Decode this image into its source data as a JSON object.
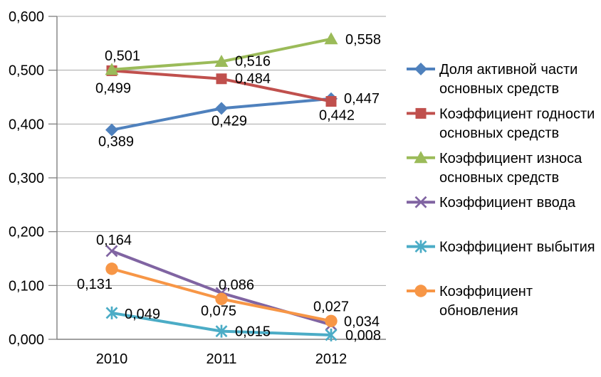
{
  "chart_data": {
    "type": "line",
    "title": "",
    "categories": [
      "2010",
      "2011",
      "2012"
    ],
    "y_axis": {
      "min": 0,
      "max": 0.6,
      "step": 0.1,
      "tick_labels": [
        "0,000",
        "0,100",
        "0,200",
        "0,300",
        "0,400",
        "0,500",
        "0,600"
      ]
    },
    "grid": true,
    "legend_position": "right",
    "series": [
      {
        "name": "Доля активной части основных средств",
        "legend_lines": [
          "Доля активной части",
          "основных средств"
        ],
        "color": "#4F81BD",
        "marker": "diamond",
        "values": [
          0.389,
          0.429,
          0.447
        ],
        "point_labels": [
          "0,389",
          "0,429",
          "0,447"
        ],
        "label_offsets": [
          [
            6,
            23,
            "middle"
          ],
          [
            11,
            24,
            "middle"
          ],
          [
            18,
            6,
            "start"
          ]
        ]
      },
      {
        "name": "Коэффициент годности основных средств",
        "legend_lines": [
          "Коэффициент годности",
          "основных средств"
        ],
        "color": "#C0504D",
        "marker": "square",
        "values": [
          0.499,
          0.484,
          0.442
        ],
        "point_labels": [
          "0,499",
          "0,484",
          "0,442"
        ],
        "label_offsets": [
          [
            2,
            31,
            "middle"
          ],
          [
            19,
            6,
            "start"
          ],
          [
            8,
            26,
            "middle"
          ]
        ]
      },
      {
        "name": "Коэффициент износа основных средств",
        "legend_lines": [
          "Коэффициент износа",
          "основных средств"
        ],
        "color": "#9BBB59",
        "marker": "triangle",
        "values": [
          0.501,
          0.516,
          0.558
        ],
        "point_labels": [
          "0,501",
          "0,516",
          "0,558"
        ],
        "label_offsets": [
          [
            15,
            -13,
            "middle"
          ],
          [
            19,
            6,
            "start"
          ],
          [
            20,
            7,
            "start"
          ]
        ]
      },
      {
        "name": "Коэффициент ввода",
        "legend_lines": [
          "Коэффициент ввода"
        ],
        "color": "#8064A2",
        "marker": "x",
        "values": [
          0.164,
          0.086,
          0.027
        ],
        "point_labels": [
          "0,164",
          "0,086",
          "0,027"
        ],
        "label_offsets": [
          [
            3,
            -9,
            "middle"
          ],
          [
            21,
            -5,
            "middle"
          ],
          [
            0,
            -19,
            "middle"
          ]
        ]
      },
      {
        "name": "Коэффициент выбытия",
        "legend_lines": [
          "Коэффициент выбытия"
        ],
        "color": "#4BACC6",
        "marker": "asterisk",
        "values": [
          0.049,
          0.015,
          0.008
        ],
        "point_labels": [
          "0,049",
          "0,015",
          "0,008"
        ],
        "label_offsets": [
          [
            18,
            8,
            "start"
          ],
          [
            19,
            7,
            "start"
          ],
          [
            20,
            7,
            "start"
          ]
        ]
      },
      {
        "name": "Коэффициент обновления",
        "legend_lines": [
          "Коэффициент",
          "обновления"
        ],
        "color": "#F79646",
        "marker": "circle",
        "values": [
          0.131,
          0.075,
          0.034
        ],
        "point_labels": [
          "0,131",
          "0,075",
          "0,034"
        ],
        "label_offsets": [
          [
            -24,
            28,
            "middle"
          ],
          [
            -4,
            23,
            "middle"
          ],
          [
            18,
            7,
            "start"
          ]
        ]
      }
    ]
  },
  "colors": {
    "grid": "#A6A6A6",
    "axis": "#808080",
    "text": "#000000",
    "background": "#FFFFFF"
  }
}
